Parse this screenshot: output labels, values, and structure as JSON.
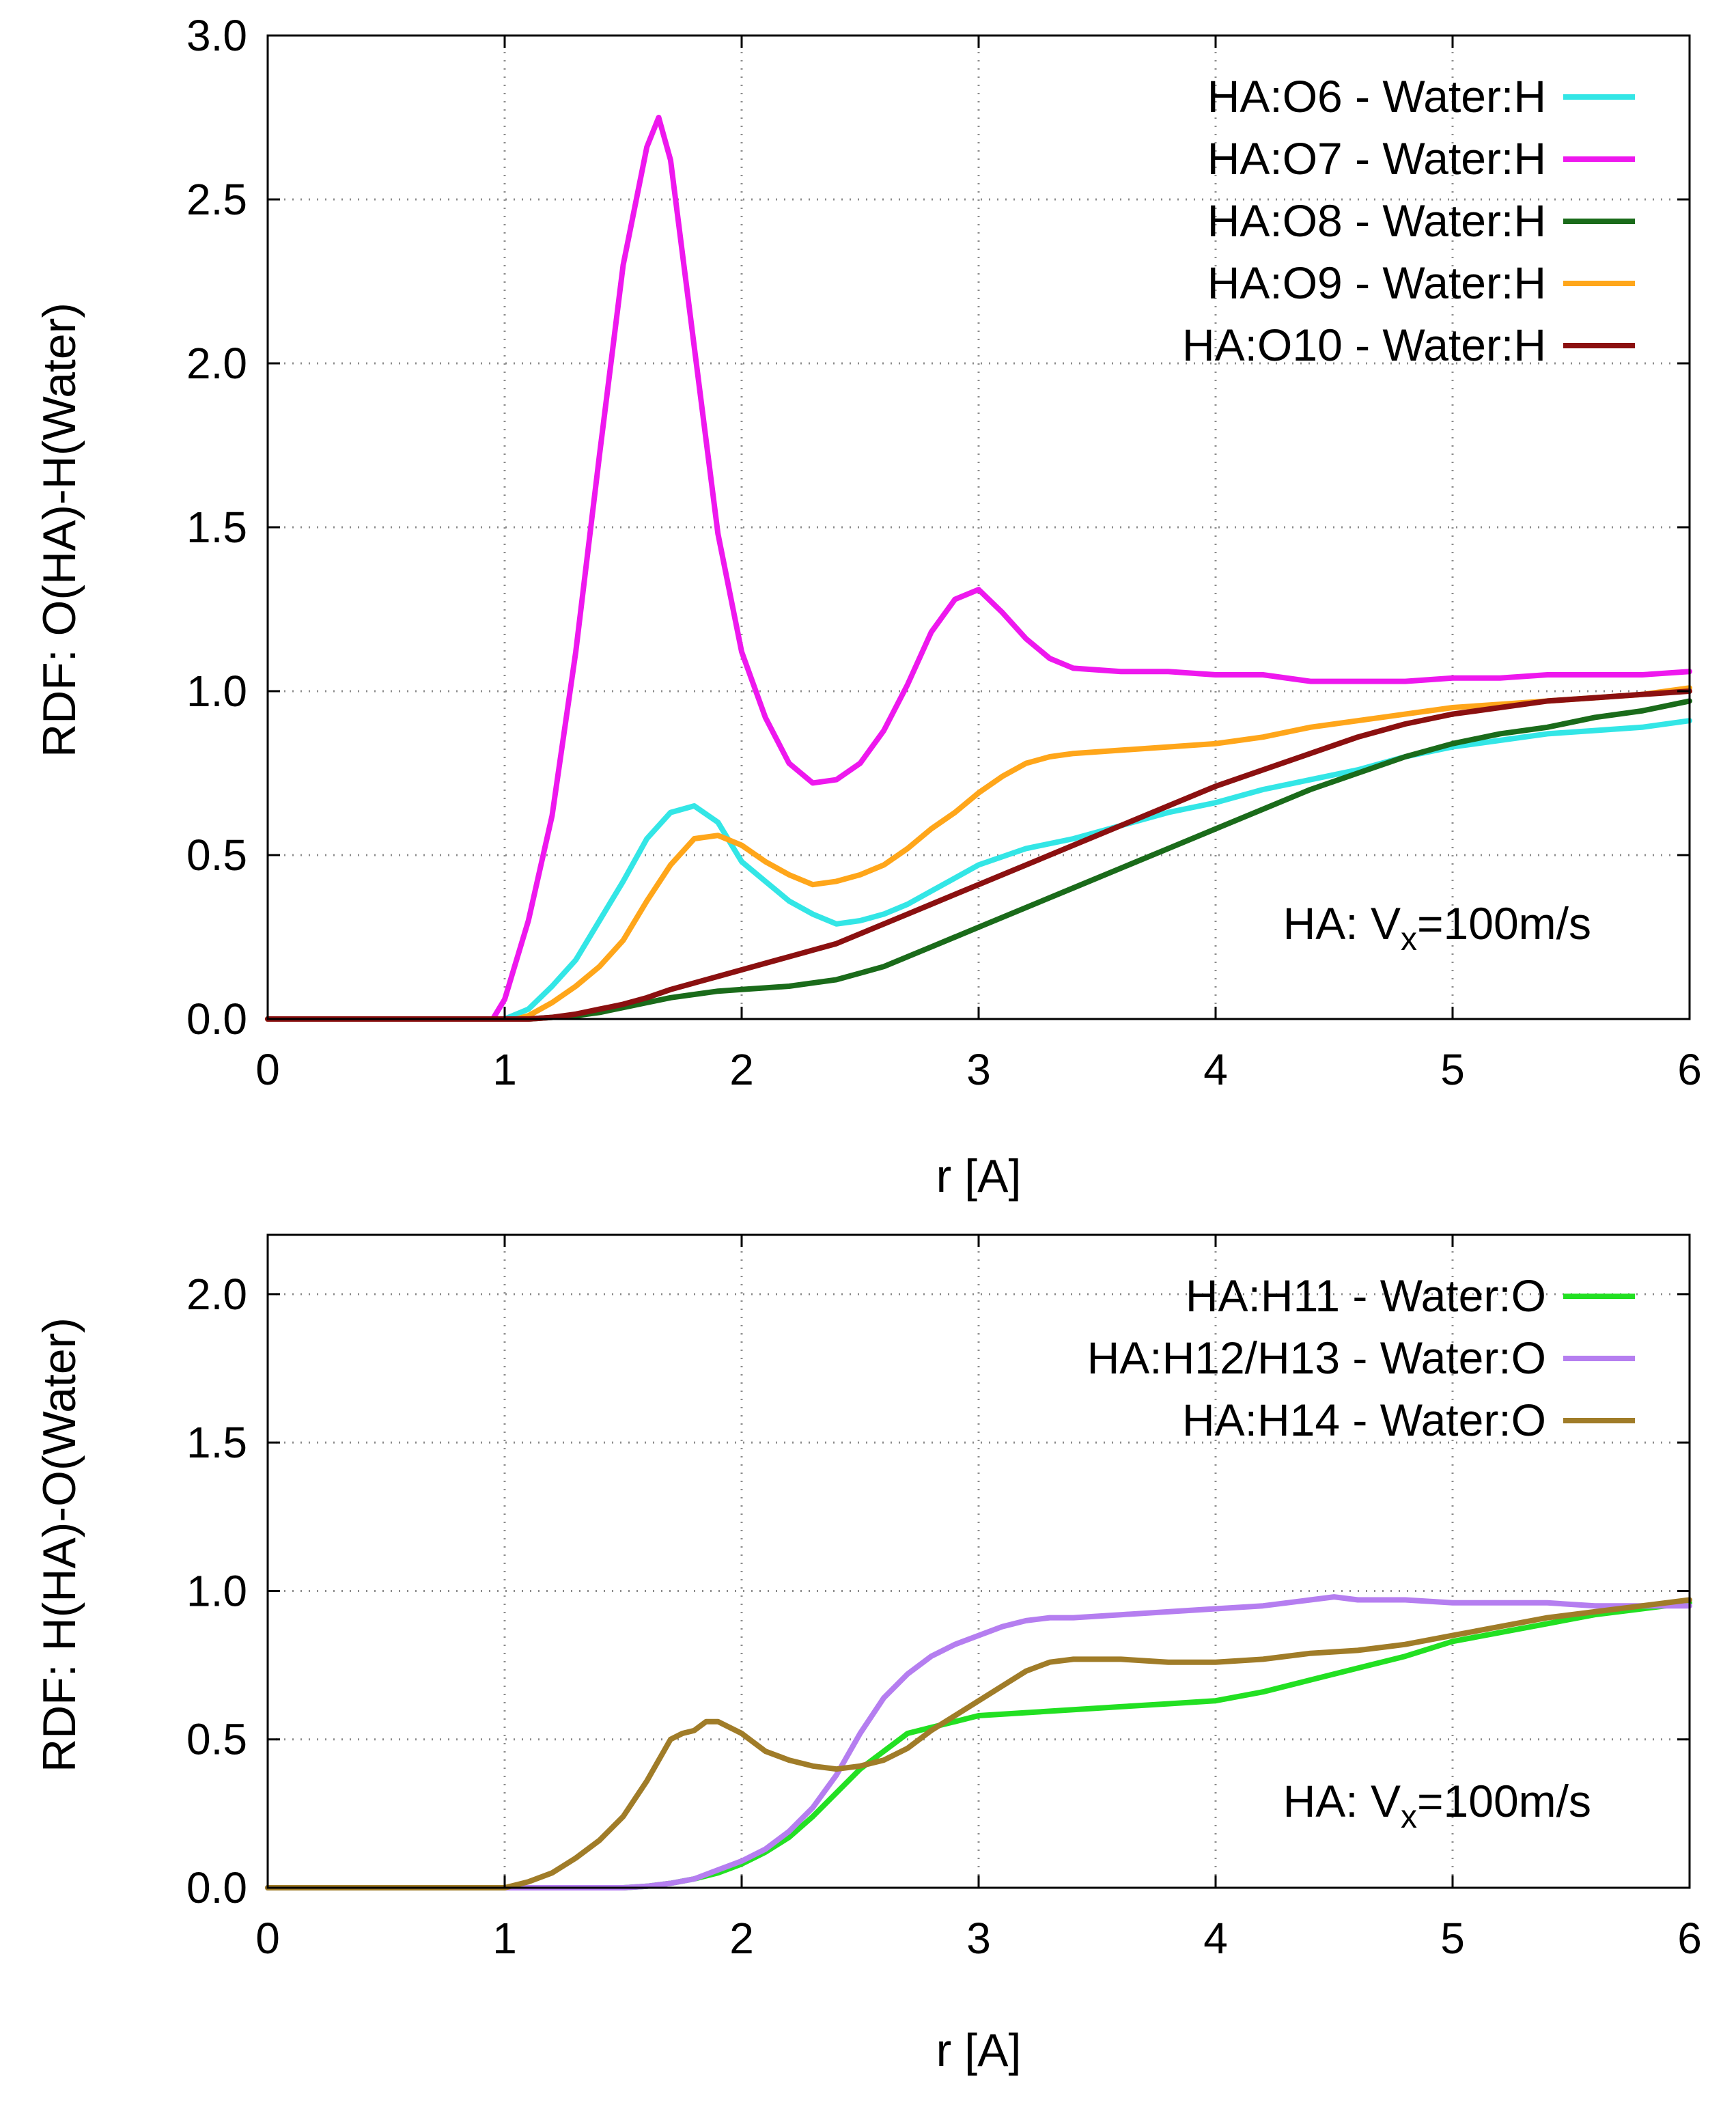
{
  "chart_data": [
    {
      "type": "line",
      "xlabel": "r  [A]",
      "ylabel": "RDF: O(HA)-H(Water)",
      "xlim": [
        0,
        6
      ],
      "ylim": [
        0,
        3
      ],
      "xticks": [
        0,
        1,
        2,
        3,
        4,
        5,
        6
      ],
      "yticks": [
        0,
        0.5,
        1,
        1.5,
        2,
        2.5,
        3
      ],
      "xtick_labels": [
        "0",
        "1",
        "2",
        "3",
        "4",
        "5",
        "6"
      ],
      "ytick_labels": [
        "0.0",
        "0.5",
        "1.0",
        "1.5",
        "2.0",
        "2.5",
        "3.0"
      ],
      "grid": true,
      "legend_position": "top-right",
      "annotation": {
        "prefix": "HA: V",
        "sub": "x",
        "suffix": "=100m/s"
      },
      "series": [
        {
          "name": "HA:O6 - Water:H",
          "color": "#33e6e6",
          "x": [
            0,
            1.0,
            1.1,
            1.2,
            1.3,
            1.4,
            1.5,
            1.6,
            1.7,
            1.8,
            1.9,
            2.0,
            2.1,
            2.2,
            2.3,
            2.4,
            2.5,
            2.6,
            2.7,
            2.8,
            2.9,
            3.0,
            3.2,
            3.4,
            3.6,
            3.8,
            4.0,
            4.2,
            4.4,
            4.6,
            4.8,
            5.0,
            5.2,
            5.4,
            5.6,
            5.8,
            6.0
          ],
          "y": [
            0,
            0,
            0.03,
            0.1,
            0.18,
            0.3,
            0.42,
            0.55,
            0.63,
            0.65,
            0.6,
            0.48,
            0.42,
            0.36,
            0.32,
            0.29,
            0.3,
            0.32,
            0.35,
            0.39,
            0.43,
            0.47,
            0.52,
            0.55,
            0.59,
            0.63,
            0.66,
            0.7,
            0.73,
            0.76,
            0.8,
            0.83,
            0.85,
            0.87,
            0.88,
            0.89,
            0.91
          ]
        },
        {
          "name": "HA:O7 - Water:H",
          "color": "#ee18ee",
          "x": [
            0,
            0.95,
            1.0,
            1.1,
            1.2,
            1.3,
            1.4,
            1.5,
            1.6,
            1.65,
            1.7,
            1.8,
            1.9,
            2.0,
            2.1,
            2.2,
            2.3,
            2.4,
            2.5,
            2.6,
            2.7,
            2.8,
            2.9,
            3.0,
            3.1,
            3.2,
            3.3,
            3.4,
            3.6,
            3.8,
            4.0,
            4.2,
            4.4,
            4.6,
            4.8,
            5.0,
            5.2,
            5.4,
            5.6,
            5.8,
            6.0
          ],
          "y": [
            0,
            0,
            0.06,
            0.3,
            0.62,
            1.12,
            1.72,
            2.3,
            2.66,
            2.75,
            2.62,
            2.05,
            1.48,
            1.12,
            0.92,
            0.78,
            0.72,
            0.73,
            0.78,
            0.88,
            1.02,
            1.18,
            1.28,
            1.31,
            1.24,
            1.16,
            1.1,
            1.07,
            1.06,
            1.06,
            1.05,
            1.05,
            1.03,
            1.03,
            1.03,
            1.04,
            1.04,
            1.05,
            1.05,
            1.05,
            1.06
          ]
        },
        {
          "name": "HA:O8 - Water:H",
          "color": "#1a6b1a",
          "x": [
            0,
            1.1,
            1.2,
            1.3,
            1.4,
            1.5,
            1.6,
            1.7,
            1.8,
            1.9,
            2.0,
            2.1,
            2.2,
            2.3,
            2.4,
            2.5,
            2.6,
            2.7,
            2.8,
            2.9,
            3.0,
            3.2,
            3.4,
            3.6,
            3.8,
            4.0,
            4.2,
            4.4,
            4.6,
            4.8,
            5.0,
            5.2,
            5.4,
            5.6,
            5.8,
            6.0
          ],
          "y": [
            0,
            0,
            0.005,
            0.01,
            0.02,
            0.035,
            0.05,
            0.065,
            0.075,
            0.085,
            0.09,
            0.095,
            0.1,
            0.11,
            0.12,
            0.14,
            0.16,
            0.19,
            0.22,
            0.25,
            0.28,
            0.34,
            0.4,
            0.46,
            0.52,
            0.58,
            0.64,
            0.7,
            0.75,
            0.8,
            0.84,
            0.87,
            0.89,
            0.92,
            0.94,
            0.97
          ]
        },
        {
          "name": "HA:O9 - Water:H",
          "color": "#ffa61a",
          "x": [
            0,
            1.05,
            1.1,
            1.2,
            1.3,
            1.4,
            1.5,
            1.6,
            1.7,
            1.8,
            1.9,
            2.0,
            2.1,
            2.2,
            2.3,
            2.4,
            2.5,
            2.6,
            2.7,
            2.8,
            2.9,
            3.0,
            3.1,
            3.2,
            3.3,
            3.4,
            3.6,
            3.8,
            4.0,
            4.2,
            4.4,
            4.6,
            4.8,
            5.0,
            5.2,
            5.4,
            5.6,
            5.8,
            6.0
          ],
          "y": [
            0,
            0,
            0.01,
            0.05,
            0.1,
            0.16,
            0.24,
            0.36,
            0.47,
            0.55,
            0.56,
            0.53,
            0.48,
            0.44,
            0.41,
            0.42,
            0.44,
            0.47,
            0.52,
            0.58,
            0.63,
            0.69,
            0.74,
            0.78,
            0.8,
            0.81,
            0.82,
            0.83,
            0.84,
            0.86,
            0.89,
            0.91,
            0.93,
            0.95,
            0.96,
            0.97,
            0.98,
            0.99,
            1.01
          ]
        },
        {
          "name": "HA:O10 - Water:H",
          "color": "#8b1010",
          "x": [
            0,
            1.1,
            1.2,
            1.3,
            1.4,
            1.5,
            1.6,
            1.7,
            1.8,
            1.9,
            2.0,
            2.1,
            2.2,
            2.3,
            2.4,
            2.5,
            2.6,
            2.7,
            2.8,
            2.9,
            3.0,
            3.2,
            3.4,
            3.6,
            3.8,
            4.0,
            4.2,
            4.4,
            4.6,
            4.8,
            5.0,
            5.2,
            5.4,
            5.6,
            5.8,
            6.0
          ],
          "y": [
            0,
            0,
            0.005,
            0.015,
            0.03,
            0.045,
            0.065,
            0.09,
            0.11,
            0.13,
            0.15,
            0.17,
            0.19,
            0.21,
            0.23,
            0.26,
            0.29,
            0.32,
            0.35,
            0.38,
            0.41,
            0.47,
            0.53,
            0.59,
            0.65,
            0.71,
            0.76,
            0.81,
            0.86,
            0.9,
            0.93,
            0.95,
            0.97,
            0.98,
            0.99,
            1.0
          ]
        }
      ]
    },
    {
      "type": "line",
      "xlabel": "r  [A]",
      "ylabel": "RDF: H(HA)-O(Water)",
      "xlim": [
        0,
        6
      ],
      "ylim": [
        0,
        2.2
      ],
      "xticks": [
        0,
        1,
        2,
        3,
        4,
        5,
        6
      ],
      "yticks": [
        0,
        0.5,
        1,
        1.5,
        2
      ],
      "xtick_labels": [
        "0",
        "1",
        "2",
        "3",
        "4",
        "5",
        "6"
      ],
      "ytick_labels": [
        "0.0",
        "0.5",
        "1.0",
        "1.5",
        "2.0"
      ],
      "grid": true,
      "legend_position": "top-right",
      "annotation": {
        "prefix": "HA: V",
        "sub": "x",
        "suffix": "=100m/s"
      },
      "series": [
        {
          "name": "HA:H11 - Water:O",
          "color": "#22e022",
          "x": [
            0,
            1.5,
            1.6,
            1.7,
            1.8,
            1.9,
            2.0,
            2.1,
            2.2,
            2.3,
            2.4,
            2.5,
            2.6,
            2.7,
            2.8,
            2.9,
            3.0,
            3.2,
            3.4,
            3.6,
            3.8,
            4.0,
            4.2,
            4.4,
            4.6,
            4.8,
            5.0,
            5.2,
            5.4,
            5.6,
            5.8,
            6.0
          ],
          "y": [
            0,
            0,
            0.005,
            0.015,
            0.03,
            0.05,
            0.08,
            0.12,
            0.17,
            0.24,
            0.32,
            0.4,
            0.46,
            0.52,
            0.54,
            0.56,
            0.58,
            0.59,
            0.6,
            0.61,
            0.62,
            0.63,
            0.66,
            0.7,
            0.74,
            0.78,
            0.83,
            0.86,
            0.89,
            0.92,
            0.94,
            0.96
          ]
        },
        {
          "name": "HA:H12/H13 - Water:O",
          "color": "#b57ef0",
          "x": [
            0,
            1.5,
            1.6,
            1.7,
            1.8,
            1.9,
            2.0,
            2.1,
            2.2,
            2.3,
            2.4,
            2.5,
            2.6,
            2.7,
            2.8,
            2.9,
            3.0,
            3.1,
            3.2,
            3.3,
            3.4,
            3.6,
            3.8,
            4.0,
            4.2,
            4.4,
            4.5,
            4.6,
            4.8,
            5.0,
            5.2,
            5.4,
            5.6,
            5.8,
            6.0
          ],
          "y": [
            0,
            0,
            0.005,
            0.015,
            0.03,
            0.06,
            0.09,
            0.13,
            0.19,
            0.27,
            0.38,
            0.52,
            0.64,
            0.72,
            0.78,
            0.82,
            0.85,
            0.88,
            0.9,
            0.91,
            0.91,
            0.92,
            0.93,
            0.94,
            0.95,
            0.97,
            0.98,
            0.97,
            0.97,
            0.96,
            0.96,
            0.96,
            0.95,
            0.95,
            0.95
          ]
        },
        {
          "name": "HA:H14 - Water:O",
          "color": "#a07c28",
          "x": [
            0,
            1.0,
            1.1,
            1.2,
            1.3,
            1.4,
            1.5,
            1.6,
            1.7,
            1.75,
            1.8,
            1.85,
            1.9,
            2.0,
            2.1,
            2.2,
            2.3,
            2.4,
            2.5,
            2.6,
            2.7,
            2.8,
            2.9,
            3.0,
            3.1,
            3.2,
            3.3,
            3.4,
            3.6,
            3.8,
            4.0,
            4.2,
            4.4,
            4.6,
            4.8,
            5.0,
            5.2,
            5.4,
            5.6,
            5.8,
            6.0
          ],
          "y": [
            0,
            0,
            0.02,
            0.05,
            0.1,
            0.16,
            0.24,
            0.36,
            0.5,
            0.52,
            0.53,
            0.56,
            0.56,
            0.52,
            0.46,
            0.43,
            0.41,
            0.4,
            0.41,
            0.43,
            0.47,
            0.53,
            0.58,
            0.63,
            0.68,
            0.73,
            0.76,
            0.77,
            0.77,
            0.76,
            0.76,
            0.77,
            0.79,
            0.8,
            0.82,
            0.85,
            0.88,
            0.91,
            0.93,
            0.95,
            0.97
          ]
        }
      ]
    }
  ]
}
